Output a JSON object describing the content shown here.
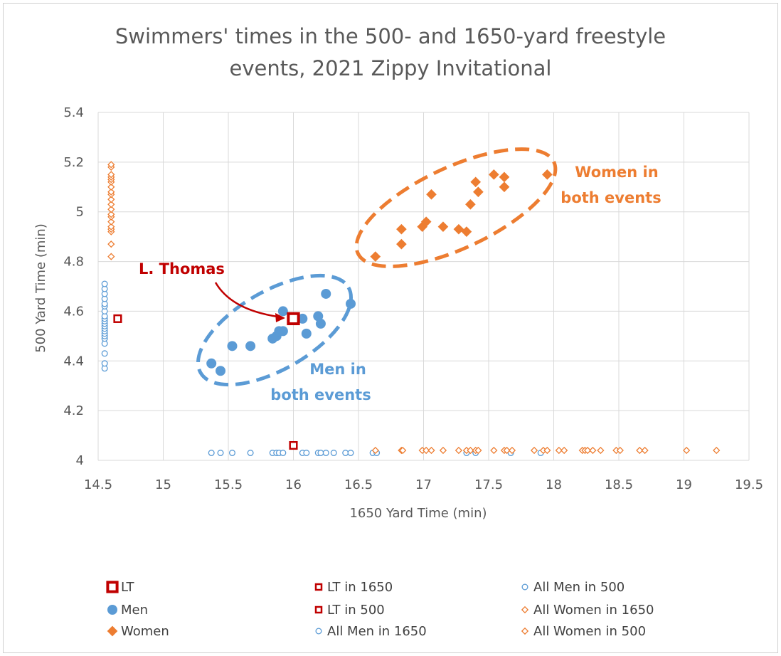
{
  "chart_data": {
    "type": "scatter",
    "title_lines": [
      "Swimmers' times in the 500- and 1650-yard freestyle",
      "events, 2021 Zippy Invitational"
    ],
    "xlabel": "1650 Yard Time (min)",
    "ylabel": "500 Yard Time (min)",
    "xlim": [
      14.5,
      19.5
    ],
    "ylim": [
      4,
      5.4
    ],
    "x_ticks": [
      14.5,
      15,
      15.5,
      16,
      16.5,
      17,
      17.5,
      18,
      18.5,
      19,
      19.5
    ],
    "x_tick_labels": [
      "14.5",
      "15",
      "15.5",
      "16",
      "16.5",
      "17",
      "17.5",
      "18",
      "18.5",
      "19",
      "19.5"
    ],
    "y_ticks": [
      4,
      4.2,
      4.4,
      4.6,
      4.8,
      5,
      5.2,
      5.4
    ],
    "y_tick_labels": [
      "4",
      "4.2",
      "4.4",
      "4.6",
      "4.8",
      "5",
      "5.2",
      "5.4"
    ],
    "grid": "both",
    "legend_position": "bottom",
    "colors": {
      "lt": "#c00000",
      "men": "#5b9bd5",
      "women": "#ed7d31",
      "grid": "#d9d9d9",
      "text": "#595959"
    },
    "annotations": [
      {
        "text": "L. Thomas",
        "color": "#c00000"
      },
      {
        "text_lines": [
          "Women in",
          "both events"
        ],
        "color": "#ed7d31"
      },
      {
        "text_lines": [
          "Men in",
          "both events"
        ],
        "color": "#5b9bd5"
      }
    ],
    "series": [
      {
        "name": "LT",
        "marker": "square",
        "color": "#c00000",
        "points": [
          [
            16.0,
            4.57
          ]
        ]
      },
      {
        "name": "Men",
        "marker": "circle",
        "color": "#5b9bd5",
        "points": [
          [
            15.37,
            4.39
          ],
          [
            15.44,
            4.36
          ],
          [
            15.53,
            4.46
          ],
          [
            15.67,
            4.46
          ],
          [
            15.84,
            4.49
          ],
          [
            15.87,
            4.5
          ],
          [
            15.89,
            4.52
          ],
          [
            15.92,
            4.52
          ],
          [
            15.92,
            4.6
          ],
          [
            16.07,
            4.57
          ],
          [
            16.1,
            4.51
          ],
          [
            16.19,
            4.58
          ],
          [
            16.21,
            4.55
          ],
          [
            16.25,
            4.67
          ],
          [
            16.44,
            4.63
          ]
        ]
      },
      {
        "name": "Women",
        "marker": "diamond",
        "color": "#ed7d31",
        "points": [
          [
            16.63,
            4.82
          ],
          [
            16.83,
            4.93
          ],
          [
            16.83,
            4.87
          ],
          [
            16.99,
            4.94
          ],
          [
            17.02,
            4.96
          ],
          [
            17.06,
            5.07
          ],
          [
            17.15,
            4.94
          ],
          [
            17.27,
            4.93
          ],
          [
            17.33,
            4.92
          ],
          [
            17.36,
            5.03
          ],
          [
            17.4,
            5.12
          ],
          [
            17.42,
            5.08
          ],
          [
            17.54,
            5.15
          ],
          [
            17.62,
            5.14
          ],
          [
            17.62,
            5.1
          ],
          [
            17.95,
            5.15
          ]
        ]
      },
      {
        "name": "LT in 1650",
        "marker": "square-open",
        "color": "#c00000",
        "points": [
          [
            16.0,
            4.06
          ]
        ]
      },
      {
        "name": "LT in 500",
        "marker": "square-open",
        "color": "#c00000",
        "points": [
          [
            14.65,
            4.57
          ]
        ]
      },
      {
        "name": "All Men in 1650",
        "marker": "circle-open",
        "color": "#5b9bd5",
        "points": [
          [
            15.37,
            4.03
          ],
          [
            15.44,
            4.03
          ],
          [
            15.53,
            4.03
          ],
          [
            15.67,
            4.03
          ],
          [
            15.84,
            4.03
          ],
          [
            15.87,
            4.03
          ],
          [
            15.89,
            4.03
          ],
          [
            15.92,
            4.03
          ],
          [
            16.07,
            4.03
          ],
          [
            16.1,
            4.03
          ],
          [
            16.19,
            4.03
          ],
          [
            16.21,
            4.03
          ],
          [
            16.25,
            4.03
          ],
          [
            16.31,
            4.03
          ],
          [
            16.4,
            4.03
          ],
          [
            16.44,
            4.03
          ],
          [
            16.61,
            4.03
          ],
          [
            16.64,
            4.03
          ],
          [
            17.33,
            4.03
          ],
          [
            17.4,
            4.03
          ],
          [
            17.67,
            4.03
          ],
          [
            17.9,
            4.03
          ]
        ]
      },
      {
        "name": "All Men in 500",
        "marker": "circle-open",
        "color": "#5b9bd5",
        "points": [
          [
            14.55,
            4.37
          ],
          [
            14.55,
            4.39
          ],
          [
            14.55,
            4.43
          ],
          [
            14.55,
            4.47
          ],
          [
            14.55,
            4.49
          ],
          [
            14.55,
            4.5
          ],
          [
            14.55,
            4.51
          ],
          [
            14.55,
            4.52
          ],
          [
            14.55,
            4.53
          ],
          [
            14.55,
            4.54
          ],
          [
            14.55,
            4.55
          ],
          [
            14.55,
            4.56
          ],
          [
            14.55,
            4.57
          ],
          [
            14.55,
            4.58
          ],
          [
            14.55,
            4.6
          ],
          [
            14.55,
            4.62
          ],
          [
            14.55,
            4.63
          ],
          [
            14.55,
            4.65
          ],
          [
            14.55,
            4.67
          ],
          [
            14.55,
            4.69
          ],
          [
            14.55,
            4.71
          ]
        ]
      },
      {
        "name": "All Women in 1650",
        "marker": "diamond-open",
        "color": "#ed7d31",
        "points": [
          [
            16.63,
            4.04
          ],
          [
            16.83,
            4.04
          ],
          [
            16.84,
            4.04
          ],
          [
            16.99,
            4.04
          ],
          [
            17.02,
            4.04
          ],
          [
            17.06,
            4.04
          ],
          [
            17.15,
            4.04
          ],
          [
            17.27,
            4.04
          ],
          [
            17.33,
            4.04
          ],
          [
            17.36,
            4.04
          ],
          [
            17.4,
            4.04
          ],
          [
            17.42,
            4.04
          ],
          [
            17.54,
            4.04
          ],
          [
            17.62,
            4.04
          ],
          [
            17.64,
            4.04
          ],
          [
            17.68,
            4.04
          ],
          [
            17.85,
            4.04
          ],
          [
            17.92,
            4.04
          ],
          [
            17.95,
            4.04
          ],
          [
            18.04,
            4.04
          ],
          [
            18.08,
            4.04
          ],
          [
            18.22,
            4.04
          ],
          [
            18.24,
            4.04
          ],
          [
            18.26,
            4.04
          ],
          [
            18.3,
            4.04
          ],
          [
            18.36,
            4.04
          ],
          [
            18.48,
            4.04
          ],
          [
            18.51,
            4.04
          ],
          [
            18.66,
            4.04
          ],
          [
            18.7,
            4.04
          ],
          [
            19.02,
            4.04
          ],
          [
            19.25,
            4.04
          ]
        ]
      },
      {
        "name": "All Women in 500",
        "marker": "diamond-open",
        "color": "#ed7d31",
        "points": [
          [
            14.6,
            4.82
          ],
          [
            14.6,
            4.87
          ],
          [
            14.6,
            4.92
          ],
          [
            14.6,
            4.93
          ],
          [
            14.6,
            4.94
          ],
          [
            14.6,
            4.96
          ],
          [
            14.6,
            4.98
          ],
          [
            14.6,
            4.99
          ],
          [
            14.6,
            5.01
          ],
          [
            14.6,
            5.03
          ],
          [
            14.6,
            5.05
          ],
          [
            14.6,
            5.07
          ],
          [
            14.6,
            5.08
          ],
          [
            14.6,
            5.1
          ],
          [
            14.6,
            5.12
          ],
          [
            14.6,
            5.13
          ],
          [
            14.6,
            5.14
          ],
          [
            14.6,
            5.15
          ],
          [
            14.6,
            5.18
          ],
          [
            14.6,
            5.19
          ]
        ]
      }
    ]
  }
}
